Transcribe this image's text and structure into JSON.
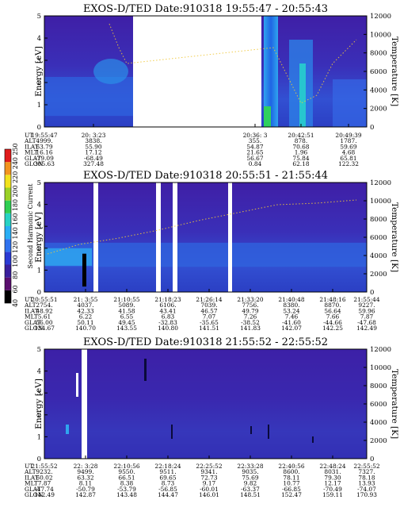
{
  "chart_data": [
    {
      "type": "heatmap",
      "title": "EXOS-D/TED   Date:910318   19:55:47 - 20:55:43",
      "ylabel": "Energy [eV]",
      "y2label": "Temperature [K]",
      "ylim": [
        0,
        5
      ],
      "y2lim": [
        0,
        12000
      ],
      "yticks": [
        "0",
        "1",
        "2",
        "3",
        "4",
        "5"
      ],
      "y2ticks": [
        "0",
        "2000",
        "4000",
        "6000",
        "8000",
        "10000",
        "12000"
      ],
      "row_labels": [
        "UT",
        "ALT",
        "ILAT",
        "MLT",
        "GLAT",
        "GLON"
      ],
      "columns": [
        {
          "values": [
            "19:55:47",
            "4999.",
            "63.79",
            "16.16",
            "-79.09",
            "305.63"
          ]
        },
        {
          "values": [
            "20: 3:23",
            "3838.",
            "55.90",
            "17.12",
            "-68.49",
            "327.48"
          ]
        },
        {
          "values": [
            "20:36: 3",
            "355.",
            "54.87",
            "21.65",
            "56.67",
            "0.84"
          ]
        },
        {
          "values": [
            "20:42:51",
            "878.",
            "70.68",
            "1.96",
            "75.84",
            "62.18"
          ]
        },
        {
          "values": [
            "20:49:39",
            "1787.",
            "59.69",
            "4.68",
            "65.81",
            "122.32"
          ]
        }
      ]
    },
    {
      "type": "heatmap",
      "title": "EXOS-D/TED   Date:910318   20:55:51 - 21:55:44",
      "ylabel": "Energy [eV]",
      "y2label": "Temperature [K]",
      "ylim": [
        0,
        5
      ],
      "y2lim": [
        0,
        12000
      ],
      "yticks": [
        "0",
        "1",
        "2",
        "3",
        "4",
        "5"
      ],
      "y2ticks": [
        "0",
        "2000",
        "4000",
        "6000",
        "8000",
        "10000",
        "12000"
      ],
      "row_labels": [
        "UT",
        "ALT",
        "ILAT",
        "MLT",
        "GLAT",
        "GLON"
      ],
      "columns": [
        {
          "values": [
            "20:55:51",
            "2754.",
            "48.92",
            "5.61",
            "56.00",
            "134.67"
          ]
        },
        {
          "values": [
            "21: 3:55",
            "4037.",
            "42.33",
            "6.22",
            "50.11",
            "140.70"
          ]
        },
        {
          "values": [
            "21:10:55",
            "5089.",
            "41.58",
            "6.55",
            "49.45",
            "143.55"
          ]
        },
        {
          "values": [
            "21:18:23",
            "6106.",
            "43.41",
            "6.83",
            "-32.83",
            "140.80"
          ]
        },
        {
          "values": [
            "21:26:14",
            "7039.",
            "46.57",
            "7.07",
            "-35.65",
            "141.51"
          ]
        },
        {
          "values": [
            "21:33:20",
            "7756.",
            "49.79",
            "7.26",
            "-38.52",
            "141.83"
          ]
        },
        {
          "values": [
            "21:40:48",
            "8380.",
            "53.24",
            "7.46",
            "-41.60",
            "142.07"
          ]
        },
        {
          "values": [
            "21:48:16",
            "8870.",
            "56.64",
            "7.66",
            "-44.66",
            "142.25"
          ]
        },
        {
          "values": [
            "21:55:44",
            "9227.",
            "59.96",
            "7.87",
            "-47.68",
            "142.49"
          ]
        }
      ]
    },
    {
      "type": "heatmap",
      "title": "EXOS-D/TED   Date:910318   21:55:52 - 22:55:52",
      "ylabel": "Energy [eV]",
      "y2label": "Temperature [K]",
      "ylim": [
        0,
        5
      ],
      "y2lim": [
        0,
        12000
      ],
      "yticks": [
        "0",
        "1",
        "2",
        "3",
        "4",
        "5"
      ],
      "y2ticks": [
        "0",
        "2000",
        "4000",
        "6000",
        "8000",
        "10000",
        "12000"
      ],
      "row_labels": [
        "UT",
        "ALT",
        "ILAT",
        "MLT",
        "GLAT",
        "GLON"
      ],
      "columns": [
        {
          "values": [
            "21:55:52",
            "9232.",
            "60.02",
            "7.87",
            "-47.74",
            "142.49"
          ]
        },
        {
          "values": [
            "22: 3:28",
            "9499.",
            "63.32",
            "8.11",
            "-50.79",
            "142.87"
          ]
        },
        {
          "values": [
            "22:10:56",
            "9550.",
            "66.51",
            "8.38",
            "-53.79",
            "143.48"
          ]
        },
        {
          "values": [
            "22:18:24",
            "9511.",
            "69.65",
            "8.73",
            "-56.85",
            "144.47"
          ]
        },
        {
          "values": [
            "22:25:52",
            "9341.",
            "72.73",
            "9.17",
            "-60.01",
            "146.01"
          ]
        },
        {
          "values": [
            "22:33:28",
            "9035.",
            "75.69",
            "9.82",
            "-63.37",
            "148.51"
          ]
        },
        {
          "values": [
            "22:40:56",
            "8600.",
            "78.11",
            "10.77",
            "-66.85",
            "152.47"
          ]
        },
        {
          "values": [
            "22:48:24",
            "8031.",
            "79.30",
            "12.17",
            "-70.49",
            "159.11"
          ]
        },
        {
          "values": [
            "22:55:52",
            "7327.",
            "78.18",
            "13.93",
            "-74.07",
            "170.93"
          ]
        }
      ]
    }
  ],
  "colorbar": {
    "label": "Second Harmonic Current",
    "ticks": [
      "40",
      "60",
      "80",
      "100",
      "120",
      "140",
      "160",
      "180",
      "200",
      "220",
      "240",
      "250"
    ],
    "colors": [
      "#000000",
      "#5a0f6e",
      "#3a1f9c",
      "#2a3ad4",
      "#2f72ef",
      "#29aef5",
      "#27d2c4",
      "#2fcf52",
      "#9ad126",
      "#f2e21c",
      "#f2941f",
      "#e01b1b"
    ]
  }
}
